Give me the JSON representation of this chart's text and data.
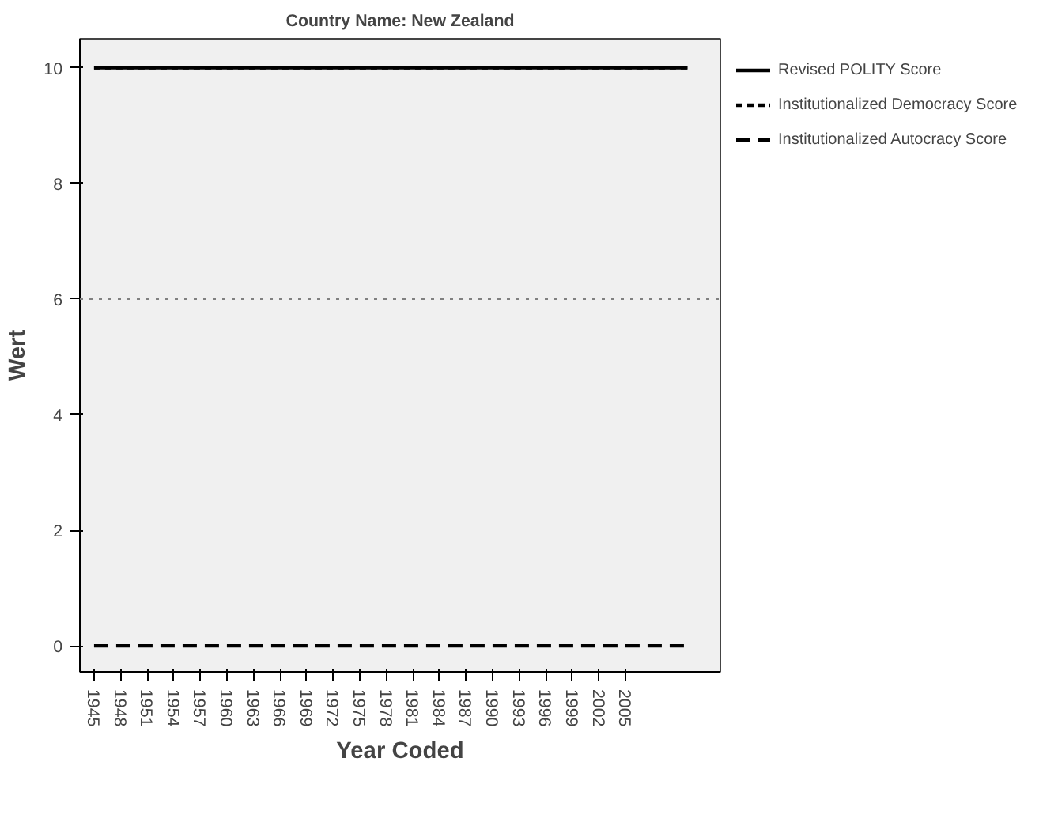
{
  "chart_data": {
    "type": "line",
    "title": "Country Name: New Zealand",
    "xlabel": "Year Coded",
    "ylabel": "Wert",
    "x": [
      1945,
      2012
    ],
    "series": [
      {
        "name": "Revised POLITY Score",
        "color": "#000000",
        "line_style": "solid",
        "values": [
          10,
          10
        ]
      },
      {
        "name": "Institutionalized Democracy Score",
        "color": "#000000",
        "line_style": "dotted",
        "values": [
          10,
          10
        ]
      },
      {
        "name": "Institutionalized Autocracy Score",
        "color": "#000000",
        "line_style": "dashed",
        "values": [
          0,
          0
        ]
      }
    ],
    "xlim": [
      1943.4,
      2015.7
    ],
    "xticks": [
      1945,
      1948,
      1951,
      1954,
      1957,
      1960,
      1963,
      1966,
      1969,
      1972,
      1975,
      1978,
      1981,
      1984,
      1987,
      1990,
      1993,
      1996,
      1999,
      2002,
      2005
    ],
    "ylim": [
      -0.45,
      10.5
    ],
    "yticks": [
      0,
      2,
      4,
      6,
      8,
      10
    ],
    "ref_lines": [
      {
        "axis": "y",
        "value": 6,
        "color": "#808080",
        "line_style": "dotted"
      }
    ],
    "grid": false,
    "legend": "top right",
    "marker": "none"
  }
}
